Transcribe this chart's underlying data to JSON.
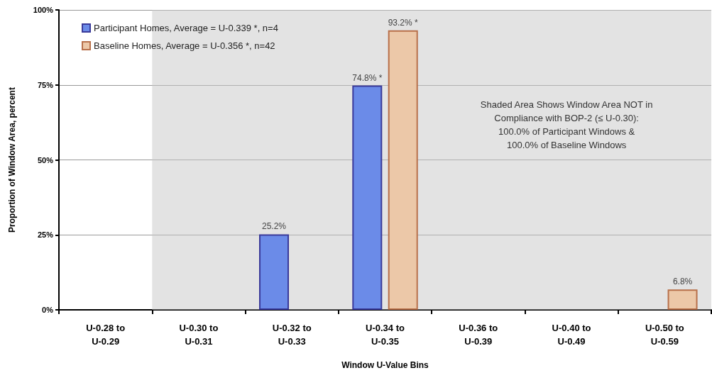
{
  "chart_data": {
    "type": "bar",
    "xlabel": "Window U-Value Bins",
    "ylabel": "Proportion of Window Area, percent",
    "categories": [
      "U-0.28 to\nU-0.29",
      "U-0.30 to\nU-0.31",
      "U-0.32 to\nU-0.33",
      "U-0.34 to\nU-0.35",
      "U-0.36 to\nU-0.39",
      "U-0.40 to\nU-0.49",
      "U-0.50 to\nU-0.59"
    ],
    "series": [
      {
        "name": "Participant Homes, Average = U-0.339 *, n=4",
        "color": "#6b8be8",
        "values": [
          0,
          0,
          25.2,
          74.8,
          0,
          0,
          0
        ],
        "value_labels": [
          null,
          null,
          "25.2%",
          "74.8% *",
          null,
          null,
          null
        ]
      },
      {
        "name": "Baseline Homes, Average = U-0.356 *, n=42",
        "color": "#ecc8a8",
        "values": [
          0,
          0,
          0,
          93.2,
          0,
          0,
          6.8
        ],
        "value_labels": [
          null,
          null,
          null,
          "93.2% *",
          null,
          null,
          "6.8%"
        ]
      }
    ],
    "ylim": [
      0,
      100
    ],
    "yticks": [
      {
        "value": 0,
        "label": "0%"
      },
      {
        "value": 25,
        "label": "25%"
      },
      {
        "value": 50,
        "label": "50%"
      },
      {
        "value": 75,
        "label": "75%"
      },
      {
        "value": 100,
        "label": "100%"
      }
    ],
    "bands": [
      {
        "axis": "x",
        "from": "U-0.30 to\nU-0.31",
        "to": "U-0.50 to\nU-0.59",
        "color": "#c8c8c8",
        "label": "Shaded Area Shows Window Area NOT in\nCompliance with BOP-2 (≤ U-0.30):\n100.0% of Participant Windows &\n100.0% of Baseline Windows"
      }
    ],
    "grid": "y",
    "legend": "top left"
  }
}
